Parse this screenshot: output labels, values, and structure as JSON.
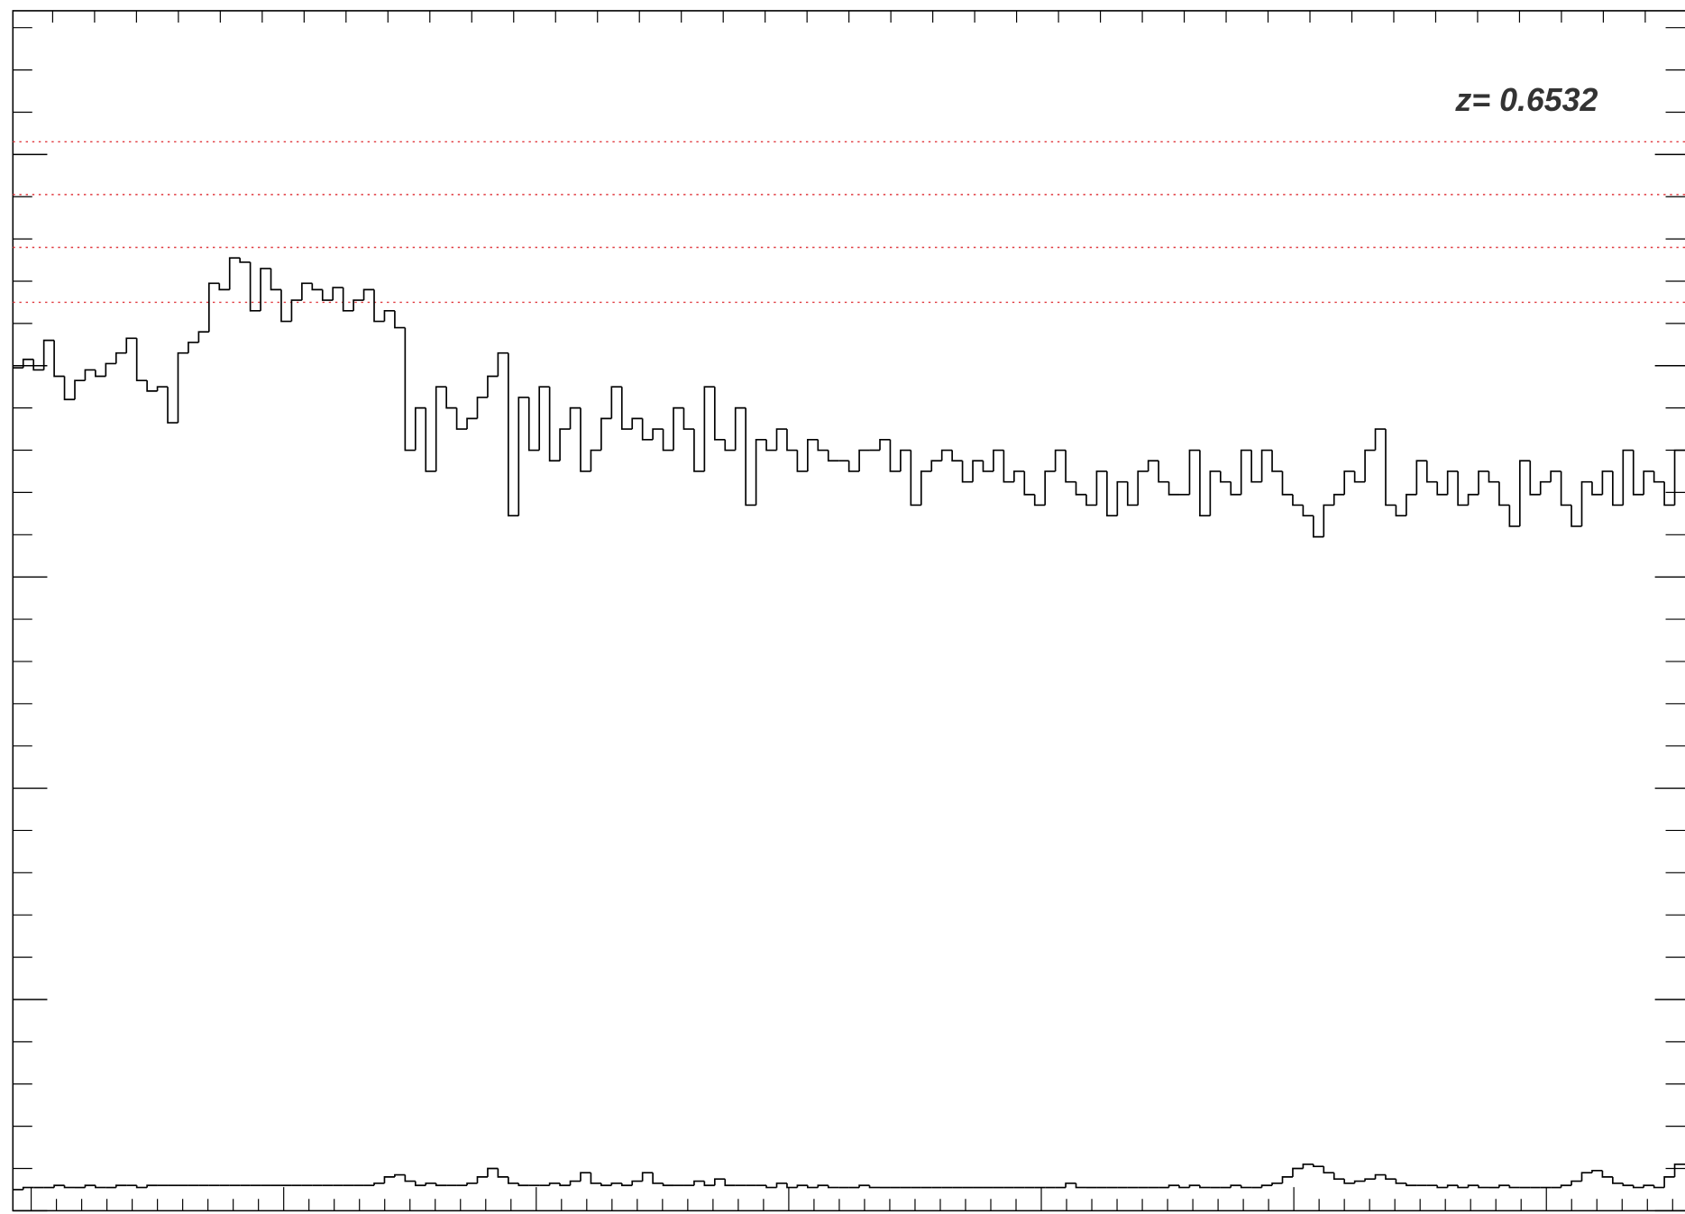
{
  "chart_data": {
    "type": "step",
    "annotation": "z= 0.6532",
    "ylim": [
      0,
      5.68
    ],
    "yticks": [
      0,
      1,
      2,
      3,
      4,
      5
    ],
    "hlines": {
      "color": "#e0393e",
      "values": [
        5.06,
        4.81,
        4.56,
        4.3
      ]
    },
    "series": [
      {
        "color": "#000000",
        "values": [
          3.99,
          4.03,
          3.98,
          4.12,
          3.95,
          3.84,
          3.93,
          3.98,
          3.95,
          4.01,
          4.06,
          4.13,
          3.93,
          3.88,
          3.9,
          3.73,
          4.06,
          4.11,
          4.16,
          4.39,
          4.36,
          4.51,
          4.49,
          4.26,
          4.46,
          4.36,
          4.21,
          4.31,
          4.39,
          4.36,
          4.31,
          4.37,
          4.26,
          4.31,
          4.36,
          4.21,
          4.26,
          4.18,
          3.6,
          3.8,
          3.5,
          3.9,
          3.8,
          3.7,
          3.75,
          3.85,
          3.95,
          4.06,
          3.29,
          3.85,
          3.6,
          3.9,
          3.55,
          3.7,
          3.8,
          3.5,
          3.6,
          3.75,
          3.9,
          3.7,
          3.75,
          3.65,
          3.7,
          3.6,
          3.8,
          3.7,
          3.5,
          3.9,
          3.65,
          3.6,
          3.8,
          3.34,
          3.65,
          3.6,
          3.7,
          3.6,
          3.5,
          3.65,
          3.6,
          3.55,
          3.55,
          3.5,
          3.6,
          3.6,
          3.65,
          3.5,
          3.6,
          3.34,
          3.5,
          3.55,
          3.6,
          3.55,
          3.45,
          3.55,
          3.5,
          3.6,
          3.45,
          3.5,
          3.39,
          3.34,
          3.5,
          3.6,
          3.45,
          3.39,
          3.34,
          3.5,
          3.29,
          3.45,
          3.34,
          3.5,
          3.55,
          3.45,
          3.39,
          3.39,
          3.6,
          3.29,
          3.5,
          3.45,
          3.39,
          3.6,
          3.45,
          3.6,
          3.5,
          3.39,
          3.34,
          3.29,
          3.19,
          3.34,
          3.39,
          3.5,
          3.45,
          3.6,
          3.7,
          3.34,
          3.29,
          3.39,
          3.55,
          3.45,
          3.39,
          3.5,
          3.34,
          3.39,
          3.5,
          3.45,
          3.34,
          3.24,
          3.55,
          3.39,
          3.45,
          3.5,
          3.34,
          3.24,
          3.45,
          3.39,
          3.5,
          3.34,
          3.6,
          3.39,
          3.5,
          3.45,
          3.34,
          3.6
        ]
      },
      {
        "color": "#000000",
        "values": [
          0.1,
          0.11,
          0.11,
          0.11,
          0.12,
          0.11,
          0.11,
          0.12,
          0.11,
          0.11,
          0.12,
          0.12,
          0.11,
          0.12,
          0.12,
          0.12,
          0.12,
          0.12,
          0.12,
          0.12,
          0.12,
          0.12,
          0.12,
          0.12,
          0.12,
          0.12,
          0.12,
          0.12,
          0.12,
          0.12,
          0.12,
          0.12,
          0.12,
          0.12,
          0.12,
          0.13,
          0.16,
          0.17,
          0.14,
          0.12,
          0.13,
          0.12,
          0.12,
          0.12,
          0.13,
          0.16,
          0.2,
          0.16,
          0.13,
          0.12,
          0.12,
          0.12,
          0.13,
          0.12,
          0.14,
          0.18,
          0.13,
          0.12,
          0.13,
          0.12,
          0.14,
          0.18,
          0.13,
          0.12,
          0.12,
          0.12,
          0.14,
          0.12,
          0.15,
          0.12,
          0.12,
          0.12,
          0.12,
          0.11,
          0.13,
          0.11,
          0.12,
          0.11,
          0.12,
          0.11,
          0.11,
          0.11,
          0.12,
          0.11,
          0.11,
          0.11,
          0.11,
          0.11,
          0.11,
          0.11,
          0.11,
          0.11,
          0.11,
          0.11,
          0.11,
          0.11,
          0.11,
          0.11,
          0.11,
          0.11,
          0.11,
          0.11,
          0.13,
          0.11,
          0.11,
          0.11,
          0.11,
          0.11,
          0.11,
          0.11,
          0.11,
          0.11,
          0.12,
          0.11,
          0.12,
          0.11,
          0.11,
          0.11,
          0.12,
          0.11,
          0.11,
          0.12,
          0.13,
          0.16,
          0.2,
          0.22,
          0.21,
          0.18,
          0.15,
          0.13,
          0.14,
          0.15,
          0.17,
          0.15,
          0.13,
          0.12,
          0.12,
          0.12,
          0.11,
          0.12,
          0.11,
          0.12,
          0.11,
          0.11,
          0.12,
          0.11,
          0.11,
          0.11,
          0.11,
          0.11,
          0.12,
          0.14,
          0.18,
          0.19,
          0.16,
          0.13,
          0.12,
          0.11,
          0.12,
          0.11,
          0.16,
          0.22
        ]
      }
    ]
  }
}
